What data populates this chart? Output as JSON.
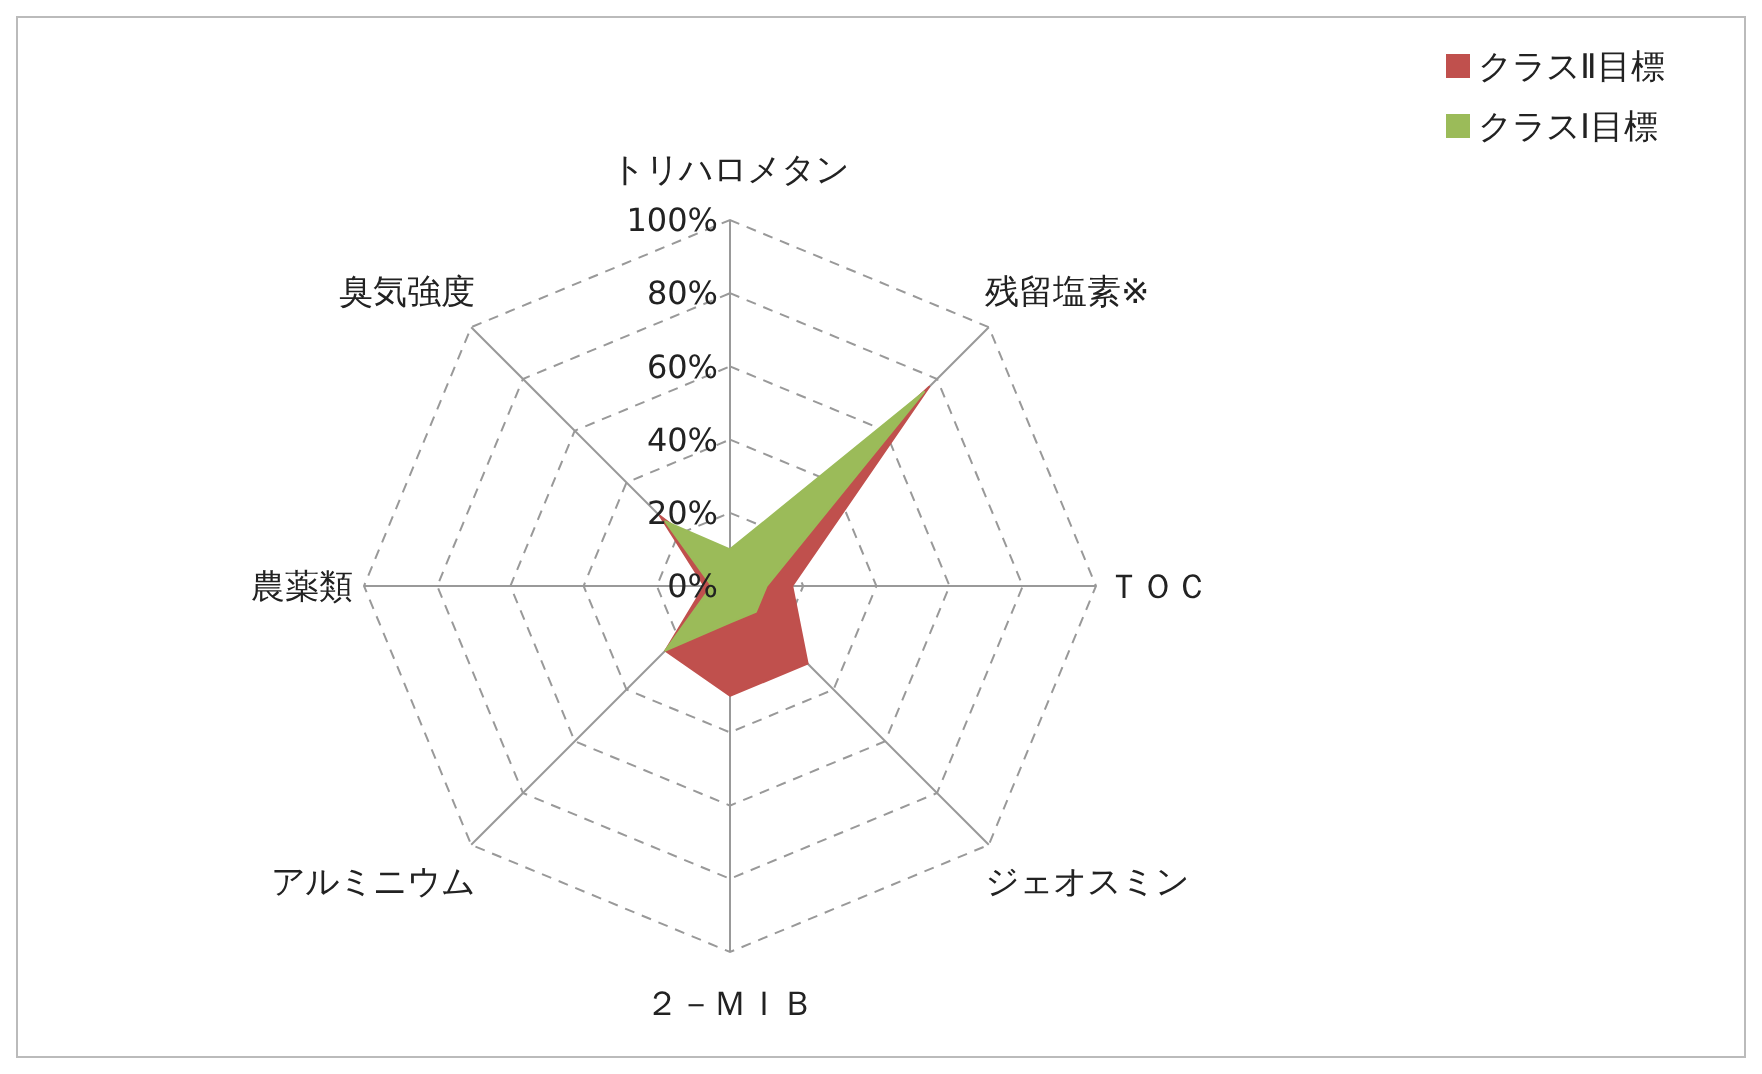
{
  "chart_data": {
    "type": "radar",
    "categories": [
      "トリハロメタン",
      "残留塩素※",
      "ＴＯＣ",
      "ジェオスミン",
      "２－ＭＩＢ",
      "アルミニウム",
      "農薬類",
      "臭気強度"
    ],
    "series": [
      {
        "name": "クラスⅡ目標",
        "color": "#c0504d",
        "values": [
          5,
          77,
          17,
          30,
          30,
          25,
          7,
          27
        ]
      },
      {
        "name": "クラスⅠ目標",
        "color": "#9bbb59",
        "values": [
          10,
          75,
          10,
          10,
          10,
          25,
          5,
          25
        ]
      }
    ],
    "ylim": [
      0,
      100
    ],
    "yticks": [
      {
        "value": 0,
        "label": "0%"
      },
      {
        "value": 20,
        "label": "20%"
      },
      {
        "value": 40,
        "label": "40%"
      },
      {
        "value": 60,
        "label": "60%"
      },
      {
        "value": 80,
        "label": "80%"
      },
      {
        "value": 100,
        "label": "100%"
      }
    ],
    "grid": true,
    "legend": "top right"
  }
}
